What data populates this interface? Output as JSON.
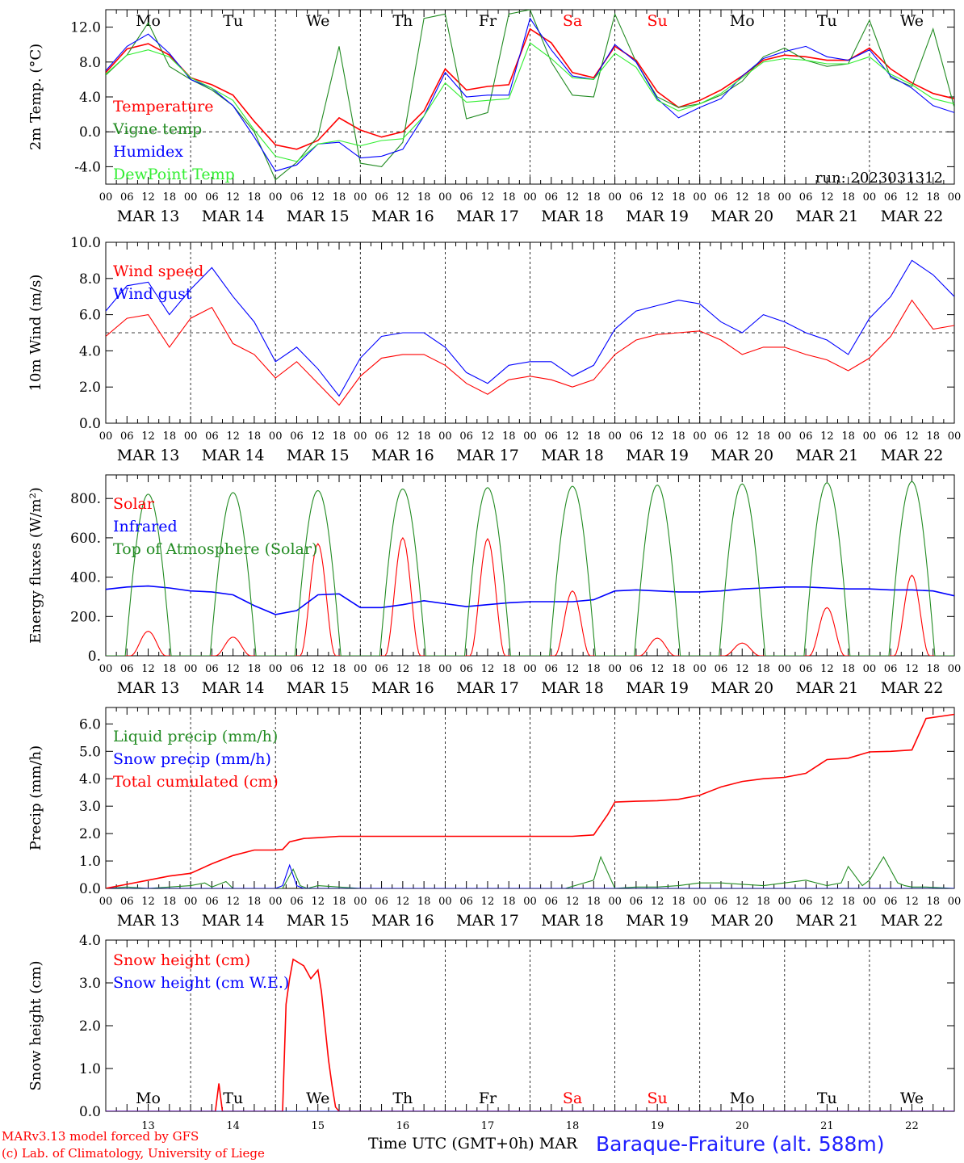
{
  "run_label": "run: 2023031312",
  "footer": {
    "model": "MARv3.13 model forced by GFS",
    "copyright": "(c) Lab. of Climatology, University of Liege",
    "time_label": "Time UTC (GMT+0h)",
    "month_label": "MAR",
    "station": "Baraque-Fraiture (alt. 588m)"
  },
  "weekdays": [
    "Mo",
    "Tu",
    "We",
    "Th",
    "Fr",
    "Sa",
    "Su",
    "Mo",
    "Tu",
    "We"
  ],
  "weekend_color": "#ff0000",
  "date_labels": [
    "MAR 13",
    "MAR 14",
    "MAR 15",
    "MAR 16",
    "MAR 17",
    "MAR 18",
    "MAR 19",
    "MAR 20",
    "MAR 21",
    "MAR 22"
  ],
  "bottom_day_numbers": [
    "13",
    "14",
    "15",
    "16",
    "17",
    "18",
    "19",
    "20",
    "21",
    "22"
  ],
  "hour_tick_labels": [
    "00",
    "06",
    "12",
    "18"
  ],
  "final_hour_label": "00",
  "chart_data": [
    {
      "type": "line",
      "ylabel": "2m Temp. (°C)",
      "ylim": [
        -6,
        14
      ],
      "yticks": [
        -4,
        0,
        4,
        8,
        12
      ],
      "ytick_labels": [
        "-4.0",
        "0.0",
        "4.0",
        "8.0",
        "12.0"
      ],
      "reference_line": 0,
      "x_unit": "hours since MAR 13 00 UTC",
      "series": [
        {
          "name": "Temperature",
          "color": "#ff0000",
          "x": [
            0,
            6,
            12,
            18,
            24,
            30,
            36,
            42,
            48,
            54,
            60,
            66,
            72,
            78,
            84,
            90,
            96,
            102,
            108,
            114,
            120,
            126,
            132,
            138,
            144,
            150,
            156,
            162,
            168,
            174,
            180,
            186,
            192,
            198,
            204,
            210,
            216,
            222,
            228,
            234,
            240
          ],
          "values": [
            6.8,
            9.5,
            10.1,
            8.8,
            6.2,
            5.4,
            4.2,
            1.2,
            -1.5,
            -2.0,
            -1.0,
            1.6,
            0.2,
            -0.6,
            0.0,
            2.4,
            7.2,
            4.8,
            5.2,
            5.4,
            11.8,
            10.2,
            6.8,
            6.2,
            9.8,
            8.2,
            4.6,
            2.8,
            3.6,
            4.8,
            6.4,
            8.2,
            8.8,
            8.6,
            8.2,
            8.2,
            9.6,
            7.2,
            5.6,
            4.4,
            3.8
          ]
        },
        {
          "name": "Vigne temp",
          "color": "#228b22",
          "x": [
            0,
            6,
            12,
            18,
            24,
            30,
            36,
            42,
            48,
            54,
            60,
            66,
            72,
            78,
            84,
            90,
            96,
            102,
            108,
            114,
            120,
            126,
            132,
            138,
            144,
            150,
            156,
            162,
            168,
            174,
            180,
            186,
            192,
            198,
            204,
            210,
            216,
            222,
            228,
            234,
            240
          ],
          "values": [
            6.5,
            8.8,
            12.5,
            7.5,
            6.0,
            4.8,
            3.0,
            0.0,
            -5.5,
            -3.5,
            -0.5,
            9.8,
            -3.6,
            -4.0,
            -1.2,
            13.0,
            13.5,
            1.5,
            2.2,
            13.5,
            14.0,
            8.0,
            4.2,
            4.0,
            13.5,
            8.0,
            4.0,
            2.8,
            3.2,
            4.2,
            5.8,
            8.6,
            9.6,
            8.2,
            7.5,
            7.8,
            12.8,
            6.2,
            5.2,
            11.8,
            2.8
          ]
        },
        {
          "name": "Humidex",
          "color": "#0000ff",
          "x": [
            0,
            6,
            12,
            18,
            24,
            30,
            36,
            42,
            48,
            54,
            60,
            66,
            72,
            78,
            84,
            90,
            96,
            102,
            108,
            114,
            120,
            126,
            132,
            138,
            144,
            150,
            156,
            162,
            168,
            174,
            180,
            186,
            192,
            198,
            204,
            210,
            216,
            222,
            228,
            234,
            240
          ],
          "values": [
            7.0,
            9.8,
            11.2,
            9.0,
            6.0,
            5.0,
            3.0,
            -0.6,
            -4.5,
            -3.8,
            -1.4,
            -1.2,
            -3.0,
            -2.8,
            -2.0,
            1.8,
            6.8,
            4.0,
            4.2,
            4.2,
            13.0,
            9.4,
            6.4,
            6.0,
            10.0,
            8.0,
            3.8,
            1.6,
            2.8,
            3.8,
            6.4,
            8.4,
            9.2,
            9.8,
            8.6,
            8.2,
            9.4,
            6.4,
            5.0,
            3.0,
            2.2
          ]
        },
        {
          "name": "DewPoint Temp",
          "color": "#33ee33",
          "x": [
            0,
            6,
            12,
            18,
            24,
            30,
            36,
            42,
            48,
            54,
            60,
            66,
            72,
            78,
            84,
            90,
            96,
            102,
            108,
            114,
            120,
            126,
            132,
            138,
            144,
            150,
            156,
            162,
            168,
            174,
            180,
            186,
            192,
            198,
            204,
            210,
            216,
            222,
            228,
            234,
            240
          ],
          "values": [
            6.6,
            8.8,
            9.4,
            8.6,
            6.2,
            5.0,
            3.6,
            0.2,
            -2.8,
            -3.4,
            -1.4,
            -1.0,
            -1.6,
            -1.0,
            -0.8,
            1.8,
            5.6,
            3.4,
            3.6,
            3.8,
            10.2,
            8.4,
            6.2,
            6.0,
            9.0,
            7.4,
            3.6,
            2.4,
            3.2,
            4.4,
            6.2,
            8.0,
            8.4,
            8.2,
            7.8,
            7.8,
            8.6,
            6.6,
            5.4,
            3.8,
            3.2
          ]
        }
      ]
    },
    {
      "type": "line",
      "ylabel": "10m Wind (m/s)",
      "ylim": [
        0,
        10
      ],
      "yticks": [
        0,
        2,
        4,
        6,
        8,
        10
      ],
      "ytick_labels": [
        "0.0",
        "2.0",
        "4.0",
        "6.0",
        "8.0",
        "10.0"
      ],
      "reference_line": 5,
      "x_unit": "hours since MAR 13 00 UTC",
      "series": [
        {
          "name": "Wind speed",
          "color": "#ff0000",
          "x": [
            0,
            6,
            12,
            18,
            24,
            30,
            36,
            42,
            48,
            54,
            60,
            66,
            72,
            78,
            84,
            90,
            96,
            102,
            108,
            114,
            120,
            126,
            132,
            138,
            144,
            150,
            156,
            162,
            168,
            174,
            180,
            186,
            192,
            198,
            204,
            210,
            216,
            222,
            228,
            234,
            240
          ],
          "values": [
            4.8,
            5.8,
            6.0,
            4.2,
            5.8,
            6.4,
            4.4,
            3.8,
            2.5,
            3.4,
            2.2,
            1.0,
            2.6,
            3.6,
            3.8,
            3.8,
            3.2,
            2.2,
            1.6,
            2.4,
            2.6,
            2.4,
            2.0,
            2.4,
            3.8,
            4.6,
            4.9,
            5.0,
            5.1,
            4.6,
            3.8,
            4.2,
            4.2,
            3.8,
            3.5,
            2.9,
            3.6,
            4.8,
            6.8,
            5.2,
            5.4
          ]
        },
        {
          "name": "Wind gust",
          "color": "#0000ff",
          "x": [
            0,
            6,
            12,
            18,
            24,
            30,
            36,
            42,
            48,
            54,
            60,
            66,
            72,
            78,
            84,
            90,
            96,
            102,
            108,
            114,
            120,
            126,
            132,
            138,
            144,
            150,
            156,
            162,
            168,
            174,
            180,
            186,
            192,
            198,
            204,
            210,
            216,
            222,
            228,
            234,
            240
          ],
          "values": [
            6.2,
            7.6,
            7.8,
            6.0,
            7.4,
            8.6,
            7.0,
            5.6,
            3.4,
            4.2,
            3.0,
            1.5,
            3.6,
            4.8,
            5.0,
            5.0,
            4.2,
            2.8,
            2.2,
            3.2,
            3.4,
            3.4,
            2.6,
            3.2,
            5.2,
            6.2,
            6.5,
            6.8,
            6.6,
            5.6,
            5.0,
            6.0,
            5.6,
            5.0,
            4.6,
            3.8,
            5.8,
            7.0,
            9.0,
            8.2,
            7.0
          ]
        }
      ]
    },
    {
      "type": "line",
      "ylabel": "Energy fluxes (W/m²)",
      "ylim": [
        0,
        920
      ],
      "yticks": [
        0,
        200,
        400,
        600,
        800
      ],
      "ytick_labels": [
        "0.",
        "200.",
        "400.",
        "600.",
        "800."
      ],
      "x_unit": "hours since MAR 13 00 UTC",
      "solar_daily_peaks": [
        125,
        95,
        570,
        600,
        595,
        330,
        90,
        65,
        245,
        410
      ],
      "toa_daily_peaks": [
        822,
        830,
        840,
        848,
        855,
        862,
        868,
        874,
        880,
        886
      ],
      "series": [
        {
          "name": "Solar",
          "color": "#ff0000"
        },
        {
          "name": "Infrared",
          "color": "#0000ff",
          "x": [
            0,
            6,
            12,
            18,
            24,
            30,
            36,
            42,
            48,
            54,
            60,
            66,
            72,
            78,
            84,
            90,
            96,
            102,
            108,
            114,
            120,
            126,
            132,
            138,
            144,
            150,
            156,
            162,
            168,
            174,
            180,
            186,
            192,
            198,
            204,
            210,
            216,
            222,
            228,
            234,
            240
          ],
          "values": [
            338,
            350,
            355,
            345,
            330,
            325,
            310,
            255,
            210,
            230,
            310,
            315,
            245,
            245,
            260,
            280,
            265,
            250,
            260,
            270,
            275,
            275,
            275,
            285,
            330,
            335,
            330,
            325,
            325,
            330,
            340,
            345,
            350,
            350,
            345,
            340,
            340,
            335,
            335,
            330,
            305
          ]
        },
        {
          "name": "Top of Atmosphere (Solar)",
          "color": "#228b22"
        }
      ]
    },
    {
      "type": "line",
      "ylabel": "Precip (mm/h)",
      "ylim": [
        0,
        6.6
      ],
      "yticks": [
        0,
        1,
        2,
        3,
        4,
        5,
        6
      ],
      "ytick_labels": [
        "0.0",
        "1.0",
        "2.0",
        "3.0",
        "4.0",
        "5.0",
        "6.0"
      ],
      "x_unit": "hours since MAR 13 00 UTC",
      "series": [
        {
          "name": "Liquid precip (mm/h)",
          "color": "#228b22",
          "x": [
            0,
            6,
            12,
            18,
            24,
            28,
            30,
            34,
            36,
            40,
            44,
            48,
            50,
            53,
            55,
            57,
            60,
            66,
            72,
            96,
            114,
            130,
            138,
            140,
            144,
            150,
            156,
            162,
            168,
            174,
            180,
            186,
            192,
            198,
            204,
            208,
            210,
            214,
            216,
            220,
            224,
            226,
            228,
            232,
            240
          ],
          "values": [
            0.0,
            0.05,
            0.0,
            0.05,
            0.1,
            0.2,
            0.05,
            0.25,
            0.0,
            0.0,
            0.0,
            0.0,
            0.0,
            0.7,
            0.1,
            0.0,
            0.1,
            0.05,
            0.0,
            0.0,
            0.0,
            0.0,
            0.3,
            1.15,
            0.0,
            0.05,
            0.05,
            0.1,
            0.2,
            0.2,
            0.15,
            0.1,
            0.2,
            0.3,
            0.1,
            0.2,
            0.8,
            0.1,
            0.3,
            1.15,
            0.2,
            0.1,
            0.05,
            0.05,
            0.0
          ]
        },
        {
          "name": "Snow precip (mm/h)",
          "color": "#0000ff",
          "x": [
            0,
            48,
            50,
            52,
            54,
            56,
            60,
            240
          ],
          "values": [
            0.0,
            0.0,
            0.1,
            0.85,
            0.1,
            0.0,
            0.0,
            0.0
          ]
        },
        {
          "name": "Total cumulated (cm)",
          "color": "#ff0000",
          "x": [
            0,
            6,
            12,
            18,
            24,
            30,
            36,
            42,
            48,
            50,
            52,
            56,
            60,
            66,
            72,
            96,
            120,
            132,
            138,
            142,
            144,
            150,
            156,
            162,
            168,
            174,
            180,
            186,
            192,
            198,
            204,
            210,
            216,
            222,
            228,
            232,
            240
          ],
          "values": [
            0.0,
            0.15,
            0.3,
            0.45,
            0.55,
            0.9,
            1.2,
            1.4,
            1.4,
            1.42,
            1.7,
            1.82,
            1.85,
            1.9,
            1.9,
            1.9,
            1.9,
            1.9,
            1.95,
            2.7,
            3.15,
            3.18,
            3.2,
            3.25,
            3.4,
            3.7,
            3.9,
            4.0,
            4.05,
            4.2,
            4.7,
            4.75,
            4.98,
            5.0,
            5.05,
            6.2,
            6.35
          ]
        }
      ]
    },
    {
      "type": "line",
      "ylabel": "Snow height (cm)",
      "ylim": [
        0,
        4
      ],
      "yticks": [
        0,
        1,
        2,
        3,
        4
      ],
      "ytick_labels": [
        "0.0",
        "1.0",
        "2.0",
        "3.0",
        "4.0"
      ],
      "x_unit": "hours since MAR 13 00 UTC",
      "series": [
        {
          "name": "Snow height (cm)",
          "color": "#ff0000",
          "x": [
            0,
            30,
            31,
            32,
            33,
            34,
            50,
            51,
            52,
            53,
            54,
            56,
            58,
            60,
            61,
            62,
            63,
            64,
            65,
            66,
            240
          ],
          "values": [
            0,
            0,
            0,
            0.65,
            0,
            0,
            0,
            2.5,
            3.1,
            3.55,
            3.5,
            3.4,
            3.1,
            3.3,
            2.8,
            2.0,
            1.2,
            0.6,
            0.1,
            0,
            0
          ]
        },
        {
          "name": "Snow height (cm W.E.)",
          "color": "#0000ff",
          "x": [
            0,
            240
          ],
          "values": [
            0,
            0
          ]
        }
      ]
    }
  ]
}
